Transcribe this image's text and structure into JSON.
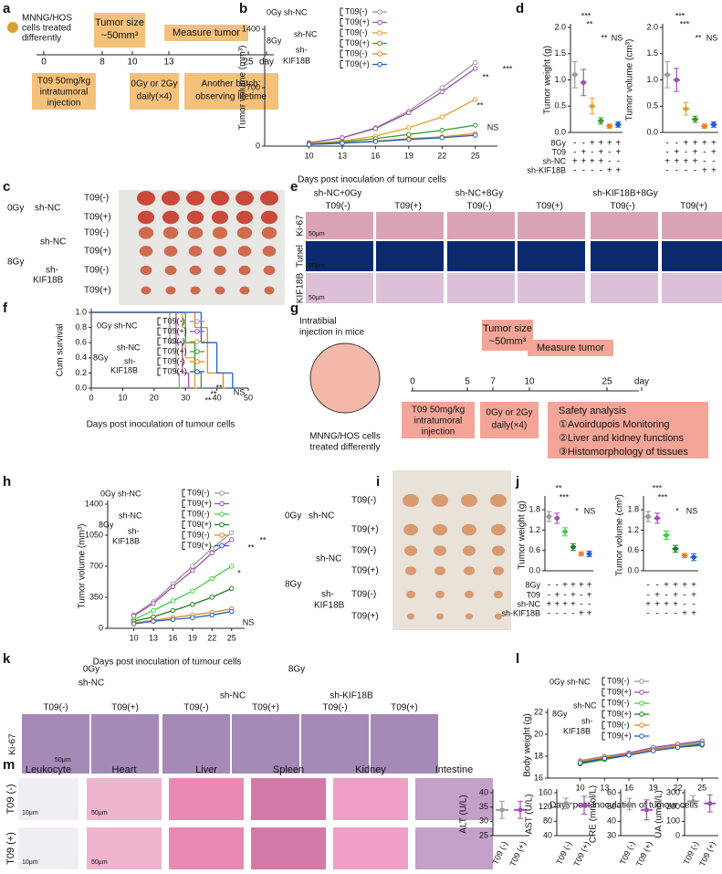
{
  "panel_labels": [
    "a",
    "b",
    "c",
    "d",
    "e",
    "f",
    "g",
    "h",
    "i",
    "j",
    "k",
    "l",
    "m",
    "n"
  ],
  "panel_a": {
    "cells": [
      "MNNG/HOS",
      "cells treated",
      "differently"
    ],
    "timeline": [
      "0",
      "8",
      "10",
      "13",
      "25",
      "day"
    ],
    "tumor_size": [
      "Tumor size",
      "~50mm³"
    ],
    "measure": "Measure tumor",
    "injection": [
      "T09 50mg/kg",
      "intratumoral",
      "injection"
    ],
    "radiation": [
      "0Gy or 2Gy",
      "daily(×4)"
    ],
    "lifetime": [
      "Another batch:",
      "observing lifetime"
    ]
  },
  "panel_c": {
    "dose": [
      "0Gy",
      "8Gy"
    ],
    "groups": [
      "sh-NC",
      "sh-NC",
      "sh-",
      "KIF18B"
    ],
    "rows": [
      "T09(-)",
      "T09(+)",
      "T09(-)",
      "T09(+)",
      "T09(-)",
      "T09(+)"
    ]
  },
  "panel_e": {
    "conditions": [
      "sh-NC+0Gy",
      "sh-NC+8Gy",
      "sh-KIF18B+8Gy"
    ],
    "columns": [
      "T09(-)",
      "T09(+)",
      "T09(-)",
      "T09(+)",
      "T09(-)",
      "T09(+)"
    ],
    "rows": [
      "Ki-67",
      "Tunel",
      "KIF18B"
    ],
    "scale": [
      "50μm",
      "50μm",
      "50μm"
    ]
  },
  "panel_g": {
    "injection_site": [
      "Intratibial",
      "injection in mice"
    ],
    "cells": [
      "MNNG/HOS cells",
      "treated differently"
    ],
    "timeline": [
      "0",
      "5",
      "7",
      "10",
      "25",
      "day"
    ],
    "tumor_size": [
      "Tumor size",
      "~50mm³"
    ],
    "measure": "Measure tumor",
    "injection": [
      "T09 50mg/kg",
      "intratumoral",
      "injection"
    ],
    "radiation": [
      "0Gy or 2Gy",
      "daily(×4)"
    ],
    "safety": [
      "Safety analysis",
      "①Avoirdupois Monitoring",
      "②Liver and kidney functions",
      "③Histomorphology of tissues"
    ]
  },
  "panel_i": {
    "dose": [
      "0Gy",
      "8Gy"
    ],
    "groups": [
      "sh-NC",
      "sh-NC",
      "sh-",
      "KIF18B"
    ],
    "rows": [
      "T09(-)",
      "T09(+)",
      "T09(-)",
      "T09(+)",
      "T09(-)",
      "T09(+)"
    ]
  },
  "panel_k": {
    "dose": [
      "0Gy",
      "8Gy"
    ],
    "groups": [
      "sh-NC",
      "sh-NC",
      "sh-KIF18B"
    ],
    "columns": [
      "T09(-)",
      "T09(+)",
      "T09(-)",
      "T09(+)",
      "T09(-)",
      "T09(+)"
    ],
    "row": "Ki-67",
    "scale": "50μm"
  },
  "panel_m": {
    "columns": [
      "Leukocyte",
      "Heart",
      "Liver",
      "Spleen",
      "Kidney",
      "Intestine"
    ],
    "rows": [
      "T09 (-)",
      "T09 (+)"
    ],
    "scale": [
      "10μm",
      "50μm",
      "10μm",
      "50μm"
    ]
  },
  "chart_data": [
    {
      "type": "line",
      "ylabel": "Tumor volume (mm³)",
      "xlabel": "Days post inoculation of tumour cells",
      "x": [
        10,
        13,
        16,
        19,
        22,
        25
      ],
      "xlim": [
        6,
        27
      ],
      "xticks": [
        10,
        13,
        16,
        19,
        22,
        25
      ],
      "ylim": [
        0,
        1400
      ],
      "yticks": [
        0,
        700,
        1400
      ],
      "legend_groups": [
        "0Gy sh-NC",
        "8Gy",
        "sh-NC",
        "sh-",
        "KIF18B"
      ],
      "series": [
        {
          "name": "T09(-)",
          "color": "#9a9a9a",
          "values": [
            40,
            100,
            220,
            420,
            700,
            1000
          ]
        },
        {
          "name": "T09(+)",
          "color": "#a050b0",
          "values": [
            40,
            100,
            210,
            400,
            650,
            930
          ]
        },
        {
          "name": "T09(-)",
          "color": "#e0a030",
          "values": [
            30,
            60,
            120,
            220,
            350,
            560
          ]
        },
        {
          "name": "T09(+)",
          "color": "#3a9a3a",
          "values": [
            25,
            50,
            90,
            140,
            190,
            250
          ]
        },
        {
          "name": "T09(-)",
          "color": "#f08020",
          "values": [
            20,
            40,
            60,
            90,
            110,
            150
          ]
        },
        {
          "name": "T09(+)",
          "color": "#2060c0",
          "values": [
            20,
            35,
            55,
            80,
            100,
            130
          ]
        }
      ],
      "annotations": [
        "**",
        "***",
        "**",
        "NS"
      ]
    },
    {
      "type": "dot",
      "ylabel": "Tumor weight (g)",
      "ylim": [
        0,
        2.0
      ],
      "yticks": [
        {
          "value": 0,
          "label": "0.0"
        },
        {
          "value": 0.5,
          "label": "0.5"
        },
        {
          "value": 1,
          "label": "1.0"
        },
        {
          "value": 1.5,
          "label": "1.5"
        },
        {
          "value": 2,
          "label": "2.0"
        }
      ],
      "colors": [
        "#9a9a9a",
        "#a050b0",
        "#e0a030",
        "#3a9a3a",
        "#f08020",
        "#2060c0"
      ],
      "values": [
        1.1,
        0.95,
        0.5,
        0.22,
        0.12,
        0.15
      ],
      "errors": [
        0.25,
        0.25,
        0.15,
        0.06,
        0.04,
        0.05
      ],
      "conditions": [
        {
          "label": "8Gy",
          "signs": [
            "-",
            "-",
            "+",
            "+",
            "+",
            "+"
          ]
        },
        {
          "label": "T09",
          "signs": [
            "-",
            "+",
            "-",
            "+",
            "-",
            "+"
          ]
        },
        {
          "label": "sh-NC",
          "signs": [
            "+",
            "+",
            "+",
            "+",
            "-",
            "-"
          ]
        },
        {
          "label": "sh-KIF18B",
          "signs": [
            "-",
            "-",
            "-",
            "-",
            "+",
            "+"
          ]
        }
      ],
      "annotations": [
        "***",
        "**",
        "**",
        "NS"
      ]
    },
    {
      "type": "dot",
      "ylabel": "Tumor volume (cm³)",
      "ylim": [
        0,
        2.0
      ],
      "yticks": [
        {
          "value": 0,
          "label": "0.0"
        },
        {
          "value": 0.5,
          "label": "0.5"
        },
        {
          "value": 1,
          "label": "1.0"
        },
        {
          "value": 1.5,
          "label": "1.5"
        },
        {
          "value": 2,
          "label": "2.0"
        }
      ],
      "colors": [
        "#9a9a9a",
        "#a050b0",
        "#e0a030",
        "#3a9a3a",
        "#f08020",
        "#2060c0"
      ],
      "values": [
        1.1,
        1.0,
        0.45,
        0.25,
        0.12,
        0.15
      ],
      "errors": [
        0.25,
        0.22,
        0.12,
        0.06,
        0.04,
        0.05
      ],
      "conditions": [
        {
          "signs": [
            "-",
            "-",
            "+",
            "+",
            "+",
            "+"
          ]
        },
        {
          "signs": [
            "-",
            "+",
            "-",
            "+",
            "-",
            "+"
          ]
        },
        {
          "signs": [
            "+",
            "+",
            "+",
            "+",
            "-",
            "-"
          ]
        },
        {
          "signs": [
            "-",
            "-",
            "-",
            "-",
            "+",
            "+"
          ]
        }
      ],
      "annotations": [
        "***",
        "***",
        "**",
        "NS"
      ]
    },
    {
      "type": "step",
      "ylabel": "Cum survival",
      "xlabel": "Days post inoculation of tumour cells",
      "xlim": [
        0,
        50
      ],
      "xticks": [
        0,
        10,
        20,
        30,
        40,
        50
      ],
      "ylim": [
        0,
        1
      ],
      "yticks": [
        {
          "value": 0,
          "label": "0.0"
        },
        {
          "value": 0.2,
          "label": "0.2"
        },
        {
          "value": 0.4,
          "label": "0.4"
        },
        {
          "value": 0.6,
          "label": "0.6"
        },
        {
          "value": 0.8,
          "label": "0.8"
        },
        {
          "value": 1,
          "label": "1.0"
        }
      ],
      "legend_groups": [
        "0Gy sh-NC",
        "8Gy",
        "sh-NC",
        "sh-",
        "KIF18B"
      ],
      "series": [
        {
          "name": "T09(-)",
          "color": "#9a9a9a",
          "x": [
            0,
            25,
            27,
            28
          ],
          "values": [
            1.0,
            0.6,
            0.2,
            0
          ]
        },
        {
          "name": "T09(+)",
          "color": "#a050b0",
          "x": [
            0,
            27,
            29,
            31
          ],
          "values": [
            1.0,
            0.6,
            0.2,
            0
          ]
        },
        {
          "name": "T09(-)",
          "color": "#e0a030",
          "x": [
            0,
            29,
            30,
            33
          ],
          "values": [
            1.0,
            0.8,
            0.4,
            0
          ]
        },
        {
          "name": "T09(+)",
          "color": "#3a9a3a",
          "x": [
            0,
            30,
            33,
            35
          ],
          "values": [
            1.0,
            0.6,
            0.2,
            0
          ]
        },
        {
          "name": "T09(-)",
          "color": "#f08020",
          "x": [
            0,
            33,
            37,
            42
          ],
          "values": [
            1.0,
            0.8,
            0.2,
            0
          ]
        },
        {
          "name": "T09(+)",
          "color": "#2060c0",
          "x": [
            0,
            35,
            40,
            45
          ],
          "values": [
            1.0,
            0.6,
            0.2,
            0
          ]
        }
      ],
      "annotations": [
        "**",
        "**",
        "**",
        "NS"
      ]
    },
    {
      "type": "line",
      "ylabel": "Tumor volume (mm³)",
      "xlabel": "Days post inoculation of tumour cells",
      "x": [
        10,
        13,
        16,
        19,
        22,
        25
      ],
      "xlim": [
        6,
        27
      ],
      "xticks": [
        10,
        13,
        16,
        19,
        22,
        25
      ],
      "ylim": [
        0,
        1400
      ],
      "yticks": [
        0,
        350,
        700,
        1050,
        1400
      ],
      "legend_groups": [
        "0Gy sh-NC",
        "8Gy",
        "sh-NC",
        "sh-",
        "KIF18B"
      ],
      "series": [
        {
          "name": "T09(-)",
          "color": "#9a9a9a",
          "values": [
            150,
            300,
            500,
            700,
            900,
            1080
          ]
        },
        {
          "name": "T09(+)",
          "color": "#a050b0",
          "values": [
            140,
            280,
            470,
            650,
            850,
            1000
          ]
        },
        {
          "name": "T09(-)",
          "color": "#40d040",
          "values": [
            100,
            200,
            310,
            420,
            560,
            700
          ]
        },
        {
          "name": "T09(+)",
          "color": "#208020",
          "values": [
            80,
            130,
            200,
            270,
            350,
            450
          ]
        },
        {
          "name": "T09(-)",
          "color": "#f08020",
          "values": [
            60,
            90,
            120,
            150,
            180,
            220
          ]
        },
        {
          "name": "T09(+)",
          "color": "#2060c0",
          "values": [
            50,
            80,
            100,
            120,
            150,
            190
          ]
        }
      ],
      "annotations": [
        "**",
        "*",
        "**",
        "NS"
      ]
    },
    {
      "type": "dot",
      "ylabel": "Tumor weight (g)",
      "ylim": [
        0,
        2.1
      ],
      "yticks": [
        {
          "value": 0,
          "label": "0.0"
        },
        {
          "value": 0.6,
          "label": "0.6"
        },
        {
          "value": 1.2,
          "label": "1.2"
        },
        {
          "value": 1.8,
          "label": "1.8"
        }
      ],
      "colors": [
        "#9a9a9a",
        "#a050b0",
        "#40d040",
        "#208020",
        "#f08020",
        "#2060c0"
      ],
      "values": [
        1.6,
        1.55,
        1.15,
        0.7,
        0.5,
        0.5
      ],
      "errors": [
        0.15,
        0.15,
        0.12,
        0.1,
        0.06,
        0.08
      ],
      "conditions": [
        {
          "label": "8Gy",
          "signs": [
            "-",
            "-",
            "+",
            "+",
            "+",
            "+"
          ]
        },
        {
          "label": "T09",
          "signs": [
            "-",
            "+",
            "-",
            "+",
            "-",
            "+"
          ]
        },
        {
          "label": "sh-NC",
          "signs": [
            "+",
            "+",
            "+",
            "+",
            "-",
            "-"
          ]
        },
        {
          "label": "sh-KIF18B",
          "signs": [
            "-",
            "-",
            "-",
            "-",
            "+",
            "+"
          ]
        }
      ],
      "annotations": [
        "**",
        "***",
        "*",
        "NS"
      ]
    },
    {
      "type": "dot",
      "ylabel": "Tumor volume (cm³)",
      "ylim": [
        0,
        2.1
      ],
      "yticks": [
        {
          "value": 0,
          "label": "0.0"
        },
        {
          "value": 0.6,
          "label": "0.6"
        },
        {
          "value": 1.2,
          "label": "1.2"
        },
        {
          "value": 1.8,
          "label": "1.8"
        }
      ],
      "colors": [
        "#9a9a9a",
        "#a050b0",
        "#40d040",
        "#208020",
        "#f08020",
        "#2060c0"
      ],
      "values": [
        1.6,
        1.55,
        1.05,
        0.65,
        0.45,
        0.4
      ],
      "errors": [
        0.15,
        0.15,
        0.12,
        0.1,
        0.06,
        0.1
      ],
      "conditions": [
        {
          "signs": [
            "-",
            "-",
            "+",
            "+",
            "+",
            "+"
          ]
        },
        {
          "signs": [
            "-",
            "+",
            "-",
            "+",
            "-",
            "+"
          ]
        },
        {
          "signs": [
            "+",
            "+",
            "+",
            "+",
            "-",
            "-"
          ]
        },
        {
          "signs": [
            "-",
            "-",
            "-",
            "-",
            "+",
            "+"
          ]
        }
      ],
      "annotations": [
        "***",
        "***",
        "*",
        "NS"
      ]
    },
    {
      "type": "line",
      "ylabel": "Body weight (g)",
      "xlabel": "Days post inoculation of tumour cells",
      "x": [
        10,
        13,
        16,
        19,
        22,
        25
      ],
      "xlim": [
        6,
        27
      ],
      "xticks": [
        10,
        13,
        16,
        19,
        22,
        25
      ],
      "ylim": [
        16,
        22
      ],
      "yticks": [
        16,
        18,
        20,
        22
      ],
      "legend_groups": [
        "0Gy sh-NC",
        "8Gy",
        "sh-NC",
        "sh-",
        "KIF18B"
      ],
      "series": [
        {
          "name": "T09(-)",
          "color": "#9a9a9a",
          "values": [
            17.6,
            18.0,
            18.3,
            18.7,
            19.0,
            19.3
          ]
        },
        {
          "name": "T09(+)",
          "color": "#a050b0",
          "values": [
            17.5,
            17.9,
            18.3,
            18.8,
            19.1,
            19.4
          ]
        },
        {
          "name": "T09(-)",
          "color": "#40d040",
          "values": [
            17.4,
            17.8,
            18.2,
            18.6,
            18.9,
            19.2
          ]
        },
        {
          "name": "T09(+)",
          "color": "#208020",
          "values": [
            17.3,
            17.7,
            18.1,
            18.5,
            18.8,
            19.0
          ]
        },
        {
          "name": "T09(-)",
          "color": "#f08020",
          "values": [
            17.5,
            17.9,
            18.2,
            18.6,
            18.9,
            19.1
          ]
        },
        {
          "name": "T09(+)",
          "color": "#2060c0",
          "values": [
            17.4,
            17.8,
            18.1,
            18.5,
            18.8,
            19.1
          ]
        }
      ]
    },
    {
      "type": "dot",
      "ylabel": "ALT (U/L)",
      "ylim": [
        25,
        40
      ],
      "yticks": [
        25,
        30,
        35,
        40
      ],
      "categories": [
        "T09 (-)",
        "T09 (+)"
      ],
      "colors": [
        "#9a9a9a",
        "#a050b0"
      ],
      "values": [
        34,
        34
      ],
      "errors": [
        3,
        3
      ]
    },
    {
      "type": "dot",
      "ylabel": "AST (U/L)",
      "ylim": [
        40,
        160
      ],
      "yticks": [
        40,
        80,
        120,
        160
      ],
      "categories": [
        "T09 (-)",
        "T09 (+)"
      ],
      "colors": [
        "#9a9a9a",
        "#a050b0"
      ],
      "values": [
        130,
        125
      ],
      "errors": [
        15,
        25
      ]
    },
    {
      "type": "dot",
      "ylabel": "CRE (mmol/L)",
      "ylim": [
        30,
        60
      ],
      "yticks": [
        30,
        40,
        50,
        60
      ],
      "categories": [
        "T09 (-)",
        "T09 (+)"
      ],
      "colors": [
        "#9a9a9a",
        "#a050b0"
      ],
      "values": [
        52,
        48
      ],
      "errors": [
        4,
        7
      ]
    },
    {
      "type": "dot",
      "ylabel": "UA (umol/L)",
      "ylim": [
        0,
        300
      ],
      "yticks": [
        0,
        100,
        200,
        300
      ],
      "categories": [
        "T09 (-)",
        "T09 (+)"
      ],
      "colors": [
        "#9a9a9a",
        "#a050b0"
      ],
      "values": [
        240,
        225
      ],
      "errors": [
        40,
        60
      ]
    }
  ]
}
